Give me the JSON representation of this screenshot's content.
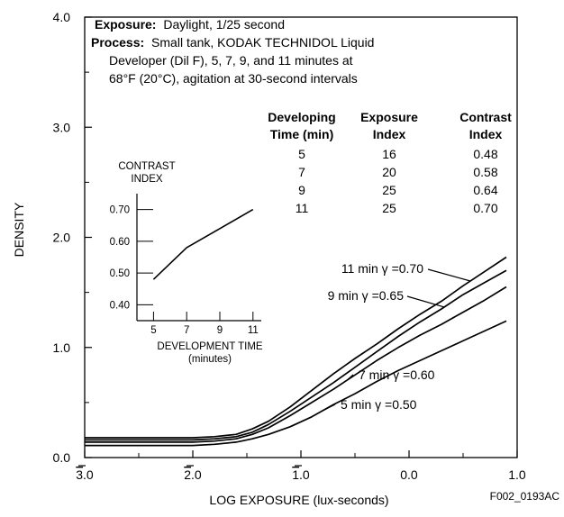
{
  "chart_data": {
    "type": "line",
    "xlabel": "LOG EXPOSURE (lux-seconds)",
    "ylabel": "DENSITY",
    "xlim": [
      -3.0,
      1.0
    ],
    "ylim": [
      0.0,
      4.0
    ],
    "grid": false,
    "figure_code": "F002_0193AC",
    "x_ticks": [
      {
        "value": -3.0,
        "digit": "3",
        "suffix": ".0",
        "bar": true
      },
      {
        "value": -2.0,
        "digit": "2",
        "suffix": ".0",
        "bar": true
      },
      {
        "value": -1.0,
        "digit": "1",
        "suffix": ".0",
        "bar": true
      },
      {
        "value": 0.0,
        "digit": "0",
        "suffix": ".0",
        "bar": false
      },
      {
        "value": 1.0,
        "digit": "1",
        "suffix": ".0",
        "bar": false
      }
    ],
    "y_ticks": [
      {
        "value": 0.0,
        "label": "0.0"
      },
      {
        "value": 1.0,
        "label": "1.0"
      },
      {
        "value": 2.0,
        "label": "2.0"
      },
      {
        "value": 3.0,
        "label": "3.0"
      },
      {
        "value": 4.0,
        "label": "4.0"
      }
    ],
    "x_minor_ticks": [
      -2.5,
      -1.5,
      -0.5,
      0.5
    ],
    "y_minor_ticks": [
      0.5,
      1.5,
      2.5,
      3.5
    ],
    "info": {
      "exposure_label": "Exposure:",
      "exposure_text": "Daylight, 1/25 second",
      "process_label": "Process:",
      "process_text": "Small tank, KODAK TECHNIDOL Liquid",
      "process_line2": "Developer (Dil F), 5, 7, 9, and 11 minutes at",
      "process_line3": "68°F (20°C), agitation at 30-second intervals"
    },
    "table": {
      "headers": [
        [
          "Developing",
          "Time (min)"
        ],
        [
          "Exposure",
          "Index"
        ],
        [
          "Contrast",
          "Index"
        ]
      ],
      "rows": [
        [
          "5",
          "16",
          "0.48"
        ],
        [
          "7",
          "20",
          "0.58"
        ],
        [
          "9",
          "25",
          "0.64"
        ],
        [
          "11",
          "25",
          "0.70"
        ]
      ]
    },
    "series": [
      {
        "label": "5 min γ =0.50",
        "x": [
          -3.0,
          -2.5,
          -2.0,
          -1.8,
          -1.6,
          -1.45,
          -1.3,
          -1.1,
          -0.9,
          -0.7,
          -0.5,
          -0.3,
          -0.1,
          0.1,
          0.3,
          0.5,
          0.7,
          0.9
        ],
        "y": [
          0.11,
          0.11,
          0.11,
          0.12,
          0.14,
          0.17,
          0.21,
          0.28,
          0.37,
          0.48,
          0.58,
          0.69,
          0.79,
          0.88,
          0.97,
          1.06,
          1.15,
          1.24
        ]
      },
      {
        "label": "7 min γ =0.60",
        "x": [
          -3.0,
          -2.5,
          -2.0,
          -1.8,
          -1.6,
          -1.45,
          -1.3,
          -1.1,
          -0.9,
          -0.7,
          -0.5,
          -0.3,
          -0.1,
          0.1,
          0.3,
          0.5,
          0.7,
          0.9
        ],
        "y": [
          0.14,
          0.14,
          0.14,
          0.15,
          0.17,
          0.21,
          0.27,
          0.38,
          0.5,
          0.62,
          0.75,
          0.88,
          1.0,
          1.11,
          1.21,
          1.32,
          1.43,
          1.55
        ]
      },
      {
        "label": "9 min γ =0.65",
        "x": [
          -3.0,
          -2.5,
          -2.0,
          -1.8,
          -1.6,
          -1.45,
          -1.3,
          -1.1,
          -0.9,
          -0.7,
          -0.5,
          -0.3,
          -0.1,
          0.1,
          0.3,
          0.5,
          0.7,
          0.9
        ],
        "y": [
          0.16,
          0.16,
          0.16,
          0.17,
          0.19,
          0.23,
          0.3,
          0.42,
          0.55,
          0.68,
          0.82,
          0.96,
          1.1,
          1.23,
          1.35,
          1.48,
          1.59,
          1.7
        ]
      },
      {
        "label": "11 min γ =0.70",
        "x": [
          -3.0,
          -2.5,
          -2.0,
          -1.8,
          -1.6,
          -1.45,
          -1.3,
          -1.1,
          -0.9,
          -0.7,
          -0.5,
          -0.3,
          -0.1,
          0.1,
          0.3,
          0.5,
          0.7,
          0.9
        ],
        "y": [
          0.18,
          0.18,
          0.18,
          0.19,
          0.21,
          0.26,
          0.33,
          0.46,
          0.61,
          0.76,
          0.9,
          1.03,
          1.17,
          1.3,
          1.42,
          1.56,
          1.69,
          1.82
        ]
      }
    ],
    "inset": {
      "type": "line",
      "title_lines": [
        "CONTRAST",
        "INDEX"
      ],
      "xlabel": "DEVELOPMENT TIME",
      "xlabel_unit": "(minutes)",
      "xlim": [
        4.0,
        11.5
      ],
      "ylim": [
        0.35,
        0.75
      ],
      "x_ticks": [
        5,
        7,
        9,
        11
      ],
      "y_ticks": [
        {
          "value": 0.4,
          "label": "0.40"
        },
        {
          "value": 0.5,
          "label": "0.50"
        },
        {
          "value": 0.6,
          "label": "0.60"
        },
        {
          "value": 0.7,
          "label": "0.70"
        }
      ],
      "series": {
        "x": [
          5,
          7,
          9,
          11
        ],
        "y": [
          0.48,
          0.58,
          0.64,
          0.7
        ]
      }
    }
  }
}
